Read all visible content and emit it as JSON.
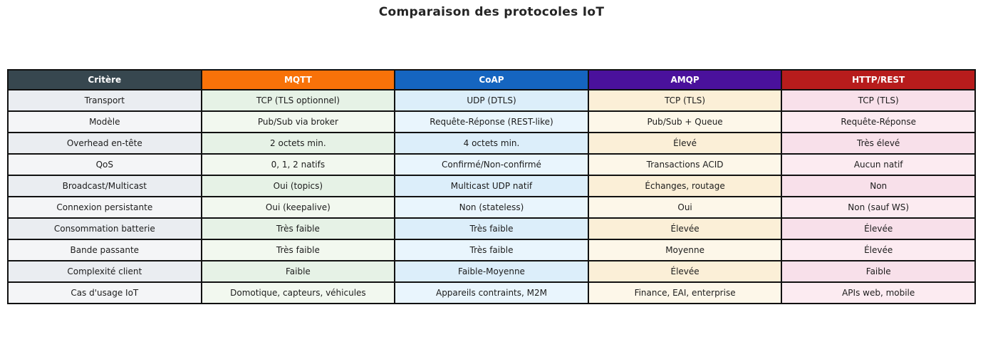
{
  "title": "Comparaison des protocoles IoT",
  "colors": {
    "background": "#FFFFFF",
    "border": "#111111",
    "title_text": "#242424",
    "header_text": "#FFFFFF",
    "cell_text": "#1C1C1C"
  },
  "chart_data": {
    "type": "table",
    "title": "Comparaison des protocoles IoT",
    "legend_position": "none",
    "grid": true,
    "columns": [
      {
        "key": "critere",
        "label": "Critère",
        "header_bg": "#37474F",
        "row_bg_a": "#EAEDF1",
        "row_bg_b": "#F4F5F7"
      },
      {
        "key": "mqtt",
        "label": "MQTT",
        "header_bg": "#F87209",
        "row_bg_a": "#E6F2E6",
        "row_bg_b": "#F2F8EF"
      },
      {
        "key": "coap",
        "label": "CoAP",
        "header_bg": "#1565C0",
        "row_bg_a": "#DCEEFA",
        "row_bg_b": "#E9F5FD"
      },
      {
        "key": "amqp",
        "label": "AMQP",
        "header_bg": "#4A119C",
        "row_bg_a": "#FBEFD7",
        "row_bg_b": "#FDF7E9"
      },
      {
        "key": "http",
        "label": "HTTP/REST",
        "header_bg": "#B71C1C",
        "row_bg_a": "#F8E0EA",
        "row_bg_b": "#FCEBF1"
      }
    ],
    "rows": [
      {
        "critere": "Transport",
        "mqtt": "TCP (TLS optionnel)",
        "coap": "UDP (DTLS)",
        "amqp": "TCP (TLS)",
        "http": "TCP (TLS)"
      },
      {
        "critere": "Modèle",
        "mqtt": "Pub/Sub via broker",
        "coap": "Requête-Réponse (REST-like)",
        "amqp": "Pub/Sub + Queue",
        "http": "Requête-Réponse"
      },
      {
        "critere": "Overhead en-tête",
        "mqtt": "2 octets min.",
        "coap": "4 octets min.",
        "amqp": "Élevé",
        "http": "Très élevé"
      },
      {
        "critere": "QoS",
        "mqtt": "0, 1, 2 natifs",
        "coap": "Confirmé/Non-confirmé",
        "amqp": "Transactions ACID",
        "http": "Aucun natif"
      },
      {
        "critere": "Broadcast/Multicast",
        "mqtt": "Oui (topics)",
        "coap": "Multicast UDP natif",
        "amqp": "Échanges, routage",
        "http": "Non"
      },
      {
        "critere": "Connexion persistante",
        "mqtt": "Oui (keepalive)",
        "coap": "Non (stateless)",
        "amqp": "Oui",
        "http": "Non (sauf WS)"
      },
      {
        "critere": "Consommation batterie",
        "mqtt": "Très faible",
        "coap": "Très faible",
        "amqp": "Élevée",
        "http": "Élevée"
      },
      {
        "critere": "Bande passante",
        "mqtt": "Très faible",
        "coap": "Très faible",
        "amqp": "Moyenne",
        "http": "Élevée"
      },
      {
        "critere": "Complexité client",
        "mqtt": "Faible",
        "coap": "Faible-Moyenne",
        "amqp": "Élevée",
        "http": "Faible"
      },
      {
        "critere": "Cas d'usage IoT",
        "mqtt": "Domotique, capteurs, véhicules",
        "coap": "Appareils contraints, M2M",
        "amqp": "Finance, EAI, enterprise",
        "http": "APIs web, mobile"
      }
    ]
  }
}
